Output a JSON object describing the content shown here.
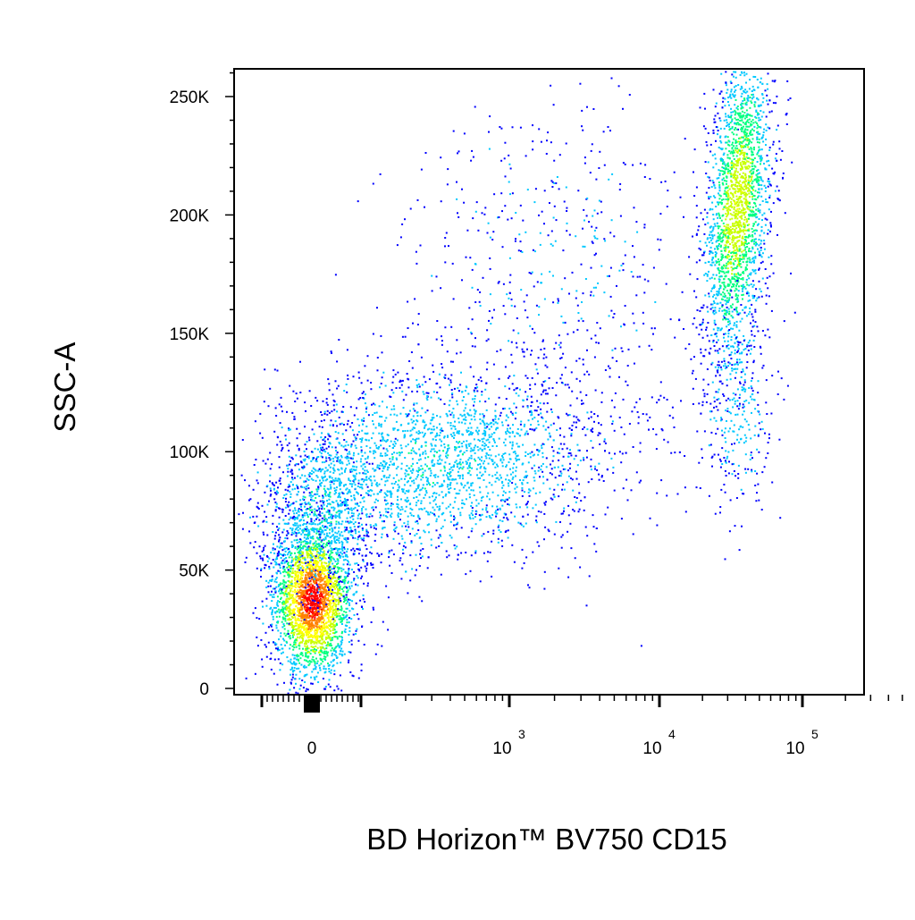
{
  "chart_data": {
    "type": "scatter",
    "style": "flow-cytometry-density-dot-plot",
    "xlabel": "BD Horizon™ BV750 CD15",
    "ylabel": "SSC-A",
    "x_scale": "biexponential",
    "y_scale": "linear",
    "x_ticks": [
      {
        "value": 0,
        "base": "0",
        "exp": ""
      },
      {
        "value": 1000,
        "base": "10",
        "exp": "3"
      },
      {
        "value": 10000,
        "base": "10",
        "exp": "4"
      },
      {
        "value": 100000,
        "base": "10",
        "exp": "5"
      }
    ],
    "y_ticks": [
      {
        "value": 0,
        "label": "0"
      },
      {
        "value": 50000,
        "label": "50K"
      },
      {
        "value": 100000,
        "label": "100K"
      },
      {
        "value": 150000,
        "label": "150K"
      },
      {
        "value": 200000,
        "label": "200K"
      },
      {
        "value": 250000,
        "label": "250K"
      }
    ],
    "ylim": [
      0,
      262144
    ],
    "density_colormap": [
      "#0000ff",
      "#00c8ff",
      "#00ff80",
      "#c8ff00",
      "#ffff00",
      "#ff8000",
      "#ff0000"
    ],
    "populations": [
      {
        "label": "CD15-negative cluster",
        "x_center": 0,
        "y_center": 38000,
        "density": "peak (red)"
      },
      {
        "label": "intermediate diffuse population",
        "x_center": 300,
        "y_center": 95000,
        "density": "low (blue/cyan)"
      },
      {
        "label": "CD15-bright cluster",
        "x_center": 35000,
        "y_center": 205000,
        "density": "medium (green/cyan)"
      }
    ],
    "grid": false,
    "legend": "none"
  }
}
